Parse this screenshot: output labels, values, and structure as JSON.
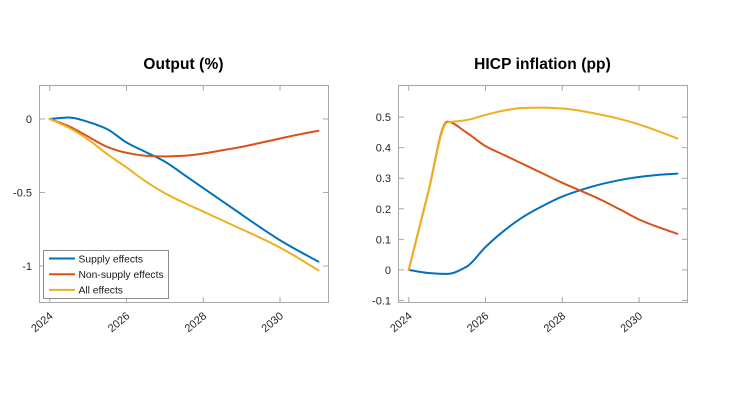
{
  "figure": {
    "background_color": "#ffffff",
    "axis_box_color": "#a8a8a8",
    "tick_label_color": "#262626",
    "title_color": "#000000",
    "legend_border_color": "#8c8c8c",
    "legend_background_color": "#ffffff",
    "legend_text_color": "#1a1a1a"
  },
  "chart_data": [
    {
      "type": "line",
      "title": "Output (%)",
      "xlabel": "",
      "ylabel": "",
      "x": [
        2024,
        2024.5,
        2025,
        2025.5,
        2026,
        2026.5,
        2027,
        2027.5,
        2028,
        2028.5,
        2029,
        2029.5,
        2030,
        2030.5,
        2031
      ],
      "series": [
        {
          "name": "Supply effects",
          "color": "#0072BD",
          "values": [
            0,
            0.01,
            -0.02,
            -0.07,
            -0.16,
            -0.225,
            -0.29,
            -0.38,
            -0.47,
            -0.56,
            -0.65,
            -0.74,
            -0.825,
            -0.9,
            -0.97
          ]
        },
        {
          "name": "Non-supply effects",
          "color": "#D95319",
          "values": [
            0,
            -0.05,
            -0.12,
            -0.19,
            -0.23,
            -0.25,
            -0.255,
            -0.25,
            -0.235,
            -0.213,
            -0.19,
            -0.162,
            -0.133,
            -0.105,
            -0.08
          ]
        },
        {
          "name": "All effects",
          "color": "#EDB120",
          "values": [
            0,
            -0.06,
            -0.14,
            -0.24,
            -0.33,
            -0.425,
            -0.505,
            -0.57,
            -0.63,
            -0.69,
            -0.75,
            -0.81,
            -0.875,
            -0.95,
            -1.03
          ]
        }
      ],
      "xlim": [
        2023.72,
        2031.25
      ],
      "ylim": [
        -1.245,
        0.231
      ],
      "xticks": [
        2024,
        2026,
        2028,
        2030
      ],
      "xtick_labels": [
        "2024",
        "2026",
        "2028",
        "2030"
      ],
      "xtick_rotation_deg": -40,
      "yticks": [
        0,
        -0.5,
        -1
      ],
      "ytick_labels": [
        "0",
        "-0.5",
        "-1"
      ],
      "grid": false,
      "legend": {
        "show": true,
        "position": "southwest-inside"
      }
    },
    {
      "type": "line",
      "title": "HICP inflation (pp)",
      "xlabel": "",
      "ylabel": "",
      "x": [
        2024,
        2024.5,
        2025,
        2025.5,
        2026,
        2026.5,
        2027,
        2027.5,
        2028,
        2028.5,
        2029,
        2029.5,
        2030,
        2030.5,
        2031
      ],
      "series": [
        {
          "name": "Supply effects",
          "color": "#0072BD",
          "values": [
            0,
            -0.01,
            -0.013,
            0.01,
            0.075,
            0.13,
            0.175,
            0.21,
            0.24,
            0.262,
            0.28,
            0.294,
            0.304,
            0.311,
            0.315
          ]
        },
        {
          "name": "Non-supply effects",
          "color": "#D95319",
          "values": [
            0,
            0.25,
            0.485,
            0.45,
            0.405,
            0.375,
            0.345,
            0.315,
            0.285,
            0.258,
            0.23,
            0.198,
            0.165,
            0.14,
            0.118
          ]
        },
        {
          "name": "All effects",
          "color": "#EDB120",
          "values": [
            0,
            0.25,
            0.482,
            0.49,
            0.507,
            0.522,
            0.53,
            0.531,
            0.528,
            0.52,
            0.508,
            0.494,
            0.476,
            0.454,
            0.43
          ]
        }
      ],
      "xlim": [
        2023.72,
        2031.25
      ],
      "ylim": [
        -0.105,
        0.605
      ],
      "xticks": [
        2024,
        2026,
        2028,
        2030
      ],
      "xtick_labels": [
        "2024",
        "2026",
        "2028",
        "2030"
      ],
      "xtick_rotation_deg": -40,
      "yticks": [
        0.5,
        0.4,
        0.3,
        0.2,
        0.1,
        0,
        -0.1
      ],
      "ytick_labels": [
        "0.5",
        "0.4",
        "0.3",
        "0.2",
        "0.1",
        "0",
        "-0.1"
      ],
      "grid": false,
      "legend": {
        "show": false
      }
    }
  ]
}
